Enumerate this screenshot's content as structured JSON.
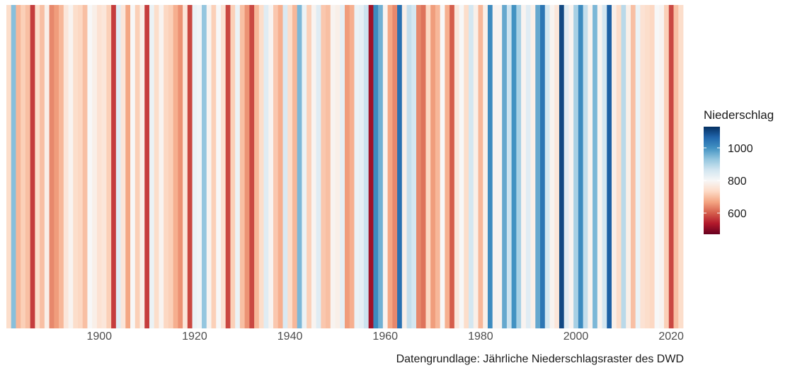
{
  "chart_data": {
    "type": "heatmap",
    "title": "",
    "xlabel": "",
    "ylabel": "",
    "xlim": [
      1881,
      2022
    ],
    "x_ticks": [
      1900,
      1920,
      1940,
      1960,
      1980,
      2000,
      2020
    ],
    "grid": false,
    "legend_placement": "right",
    "caption": "Datengrundlage: Jährliche Niederschlagsraster des DWD",
    "legend": {
      "title": "Niederschlag",
      "breaks": [
        600,
        800,
        1000
      ],
      "limits": [
        470,
        1130
      ],
      "colors": [
        "#67001f",
        "#b2182b",
        "#d6604d",
        "#f4a582",
        "#fddbc7",
        "#f7f7f7",
        "#d1e5f0",
        "#92c5de",
        "#4393c3",
        "#2166ac",
        "#053061"
      ]
    },
    "series": [
      {
        "years": [
          1881,
          1882,
          1883,
          1884,
          1885,
          1886,
          1887,
          1888,
          1889,
          1890,
          1891,
          1892,
          1893,
          1894,
          1895,
          1896,
          1897,
          1898,
          1899,
          1900,
          1901,
          1902,
          1903,
          1904,
          1905,
          1906,
          1907,
          1908,
          1909,
          1910,
          1911,
          1912,
          1913,
          1914,
          1915,
          1916,
          1917,
          1918,
          1919,
          1920,
          1921,
          1922,
          1923,
          1924,
          1925,
          1926,
          1927,
          1928,
          1929,
          1930,
          1931,
          1932,
          1933,
          1934,
          1935,
          1936,
          1937,
          1938,
          1939,
          1940,
          1941,
          1942,
          1943,
          1944,
          1945,
          1946,
          1947,
          1948,
          1949,
          1950,
          1951,
          1952,
          1953,
          1954,
          1955,
          1956,
          1957,
          1958,
          1959,
          1960,
          1961,
          1962,
          1963,
          1964,
          1965,
          1966,
          1967,
          1968,
          1969,
          1970,
          1971,
          1972,
          1973,
          1974,
          1975,
          1976,
          1977,
          1978,
          1979,
          1980,
          1981,
          1982,
          1983,
          1984,
          1985,
          1986,
          1987,
          1988,
          1989,
          1990,
          1991,
          1992,
          1993,
          1994,
          1995,
          1996,
          1997,
          1998,
          1999,
          2000,
          2001,
          2002,
          2003,
          2004,
          2005,
          2006,
          2007,
          2008,
          2009,
          2010,
          2011,
          2012,
          2013,
          2014,
          2015,
          2016,
          2017,
          2018,
          2019,
          2020,
          2021,
          2022
        ],
        "values": [
          740,
          940,
          690,
          720,
          700,
          570,
          740,
          700,
          780,
          640,
          660,
          690,
          760,
          790,
          740,
          730,
          700,
          800,
          780,
          750,
          760,
          720,
          570,
          840,
          760,
          670,
          800,
          720,
          780,
          570,
          820,
          740,
          790,
          730,
          720,
          680,
          650,
          760,
          580,
          820,
          810,
          930,
          790,
          720,
          800,
          750,
          580,
          720,
          820,
          700,
          650,
          580,
          690,
          740,
          840,
          790,
          710,
          680,
          850,
          740,
          690,
          950,
          820,
          720,
          790,
          840,
          710,
          700,
          790,
          780,
          830,
          660,
          680,
          820,
          830,
          870,
          520,
          1010,
          960,
          790,
          670,
          640,
          1050,
          780,
          880,
          860,
          640,
          620,
          730,
          660,
          690,
          800,
          680,
          600,
          760,
          800,
          740,
          860,
          780,
          690,
          780,
          1010,
          790,
          790,
          970,
          870,
          1000,
          910,
          790,
          840,
          780,
          970,
          1040,
          860,
          790,
          760,
          1100,
          840,
          790,
          910,
          1010,
          880,
          790,
          950,
          790,
          860,
          1070,
          780,
          740,
          890,
          780,
          700,
          820,
          750,
          740,
          730,
          800,
          790,
          720,
          580,
          700,
          740
        ]
      }
    ]
  }
}
